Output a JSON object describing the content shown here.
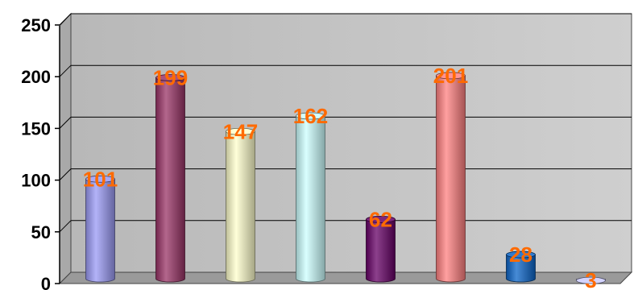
{
  "chart_data": {
    "type": "bar",
    "style": "3d-cylinder",
    "categories": [
      "",
      "",
      "",
      "",
      "",
      "",
      "",
      ""
    ],
    "values": [
      101,
      199,
      147,
      162,
      62,
      201,
      28,
      3
    ],
    "colors": [
      "#9a9af5",
      "#993366",
      "#ffffcc",
      "#ccffff",
      "#660066",
      "#ff8080",
      "#0a64c8",
      "#ccccff"
    ],
    "data_label_color": "#ff6a00",
    "plot_background": "#c0c0c0",
    "ylim": [
      0,
      250
    ],
    "yticks": [
      0,
      50,
      100,
      150,
      200,
      250
    ],
    "grid": true,
    "legend": "none"
  }
}
